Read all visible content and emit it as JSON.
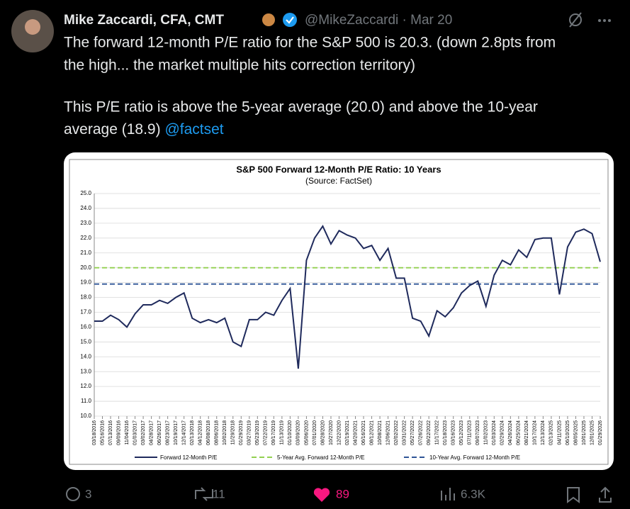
{
  "tweet": {
    "author": "Mike Zaccardi, CFA, CMT",
    "handle": "@MikeZaccardi",
    "dot": "·",
    "date": "Mar 20",
    "lines": [
      "The forward 12-month P/E ratio for the S&P 500 is 20.3. (down 2.8pts from",
      "the high... the market multiple hits correction territory)",
      "This P/E ratio is above the 5-year average (20.0) and above the 10-year",
      "average (18.9)"
    ],
    "link": "@factset",
    "actions": {
      "replies": "3",
      "reposts": "11",
      "likes": "89",
      "views": "6.3K"
    }
  },
  "chart_data": {
    "type": "line",
    "title": "S&P 500 Forward 12-Month P/E Ratio: 10 Years",
    "subtitle": "(Source: FactSet)",
    "categories": [
      "03/18/2016",
      "05/16/2016",
      "07/13/2016",
      "09/09/2016",
      "11/04/2016",
      "01/03/2017",
      "03/02/2017",
      "04/28/2017",
      "06/26/2017",
      "08/23/2017",
      "10/19/2017",
      "12/14/2017",
      "02/13/2018",
      "04/12/2018",
      "06/08/2018",
      "08/06/2018",
      "10/02/2018",
      "11/29/2018",
      "01/29/2019",
      "03/27/2019",
      "05/23/2019",
      "07/22/2019",
      "09/17/2019",
      "11/13/2019",
      "01/10/2020",
      "03/09/2020",
      "05/06/2020",
      "07/01/2020",
      "08/28/2020",
      "10/27/2020",
      "12/22/2020",
      "02/19/2021",
      "04/20/2021",
      "06/16/2021",
      "08/12/2021",
      "10/08/2021",
      "12/06/2021",
      "02/02/2022",
      "03/31/2022",
      "05/27/2022",
      "07/26/2022",
      "09/22/2022",
      "11/17/2022",
      "01/18/2023",
      "03/16/2023",
      "05/12/2023",
      "07/11/2023",
      "09/07/2023",
      "11/02/2023",
      "01/03/2024",
      "02/29/2024",
      "04/26/2024",
      "06/25/2024",
      "08/21/2024",
      "10/17/2024",
      "12/13/2024",
      "02/13/2025",
      "04/11/2025",
      "06/10/2025",
      "08/05/2025",
      "10/01/2025",
      "12/01/2025",
      "01/29/2026"
    ],
    "series": [
      {
        "name": "Forward 12-Month P/E",
        "color": "#1f2a5c",
        "values": [
          16.4,
          16.4,
          16.8,
          16.5,
          16.0,
          16.9,
          17.5,
          17.5,
          17.8,
          17.6,
          18.0,
          18.3,
          16.6,
          16.3,
          16.5,
          16.3,
          16.6,
          15.0,
          14.7,
          16.5,
          16.5,
          17.0,
          16.8,
          17.8,
          18.6,
          13.2,
          20.5,
          22.0,
          22.8,
          21.6,
          22.5,
          22.2,
          22.0,
          21.3,
          21.5,
          20.5,
          21.3,
          19.3,
          19.3,
          16.6,
          16.4,
          15.4,
          17.1,
          16.7,
          17.3,
          18.3,
          18.8,
          19.1,
          17.4,
          19.5,
          20.5,
          20.2,
          21.2,
          20.7,
          21.9,
          22.0,
          22.0,
          18.2,
          21.4,
          22.4,
          22.6,
          22.3,
          20.4
        ]
      }
    ],
    "reference_lines": [
      {
        "name": "5-Year Avg. Forward 12-Month P/E",
        "value": 20.0,
        "color": "#92d050"
      },
      {
        "name": "10-Year Avg. Forward 12-Month P/E",
        "value": 18.9,
        "color": "#2f5597"
      }
    ],
    "ylim": [
      10,
      25
    ],
    "yticks": [
      {
        "value": 10,
        "label": "10.0"
      },
      {
        "value": 11,
        "label": "11.0"
      },
      {
        "value": 12,
        "label": "12.0"
      },
      {
        "value": 13,
        "label": "13.0"
      },
      {
        "value": 14,
        "label": "14.0"
      },
      {
        "value": 15,
        "label": "15.0"
      },
      {
        "value": 16,
        "label": "16.0"
      },
      {
        "value": 17,
        "label": "17.0"
      },
      {
        "value": 18,
        "label": "18.0"
      },
      {
        "value": 19,
        "label": "19.0"
      },
      {
        "value": 20,
        "label": "20.0"
      },
      {
        "value": 21,
        "label": "21.0"
      },
      {
        "value": 22,
        "label": "22.0"
      },
      {
        "value": 23,
        "label": "23.0"
      },
      {
        "value": 24,
        "label": "24.0"
      },
      {
        "value": 25,
        "label": "25.0"
      }
    ],
    "grid": true
  }
}
